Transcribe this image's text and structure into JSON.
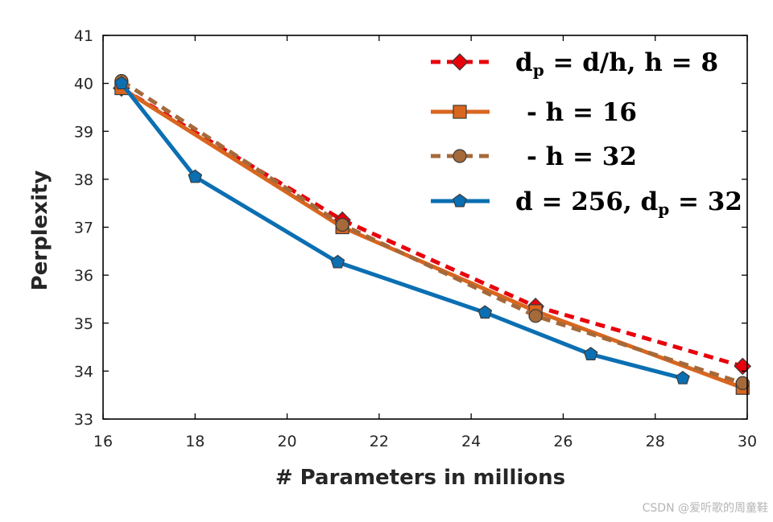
{
  "chart_data": {
    "type": "line",
    "xlabel": "# Parameters in millions",
    "ylabel": "Perplexity",
    "xlim": [
      16,
      30
    ],
    "ylim": [
      33,
      41
    ],
    "xticks": [
      16,
      18,
      20,
      22,
      24,
      26,
      28,
      30
    ],
    "yticks": [
      33,
      34,
      35,
      36,
      37,
      38,
      39,
      40,
      41
    ],
    "grid": false,
    "legend_position": "top-right",
    "series": [
      {
        "name": "d_p = d/h, h = 8",
        "color": "#e8000b",
        "line_style": "dashed",
        "marker": "diamond",
        "x": [
          16.4,
          21.2,
          25.4,
          29.9
        ],
        "y": [
          39.9,
          37.15,
          35.35,
          34.1
        ]
      },
      {
        "name": "- h = 16",
        "color": "#d9661f",
        "line_style": "solid",
        "marker": "square",
        "x": [
          16.4,
          21.2,
          25.4,
          29.9
        ],
        "y": [
          39.9,
          37.0,
          35.25,
          33.65
        ]
      },
      {
        "name": "- h = 32",
        "color": "#a5693a",
        "line_style": "dashed",
        "marker": "circle",
        "x": [
          16.4,
          21.2,
          25.4,
          29.9
        ],
        "y": [
          40.05,
          37.05,
          35.15,
          33.75
        ]
      },
      {
        "name": "d = 256, d_p = 32",
        "color": "#0b6fb2",
        "line_style": "solid",
        "marker": "pentagon",
        "x": [
          16.4,
          18.0,
          21.1,
          24.3,
          26.6,
          28.6
        ],
        "y": [
          40.0,
          38.05,
          36.27,
          35.22,
          34.35,
          33.85
        ]
      }
    ]
  },
  "legend": {
    "entries": [
      {
        "label_main": "d",
        "label_sub": "p",
        "label_rest": " = d/h, h = 8"
      },
      {
        "label_main": "- h = 16",
        "label_sub": "",
        "label_rest": ""
      },
      {
        "label_main": "- h = 32",
        "label_sub": "",
        "label_rest": ""
      },
      {
        "label_main": "d = 256, d",
        "label_sub": "p",
        "label_rest": " = 32"
      }
    ]
  },
  "watermark": "CSDN @爱听歌的周童鞋"
}
